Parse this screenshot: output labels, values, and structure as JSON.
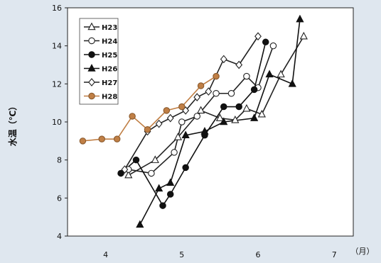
{
  "chart_data": {
    "type": "line",
    "ylabel": "水温（℃）",
    "x_unit_label": "（月）",
    "ylim": [
      4,
      16
    ],
    "xlim": [
      3.5,
      7.25
    ],
    "x_ticks": [
      4,
      5,
      6,
      7
    ],
    "y_ticks": [
      4,
      6,
      8,
      10,
      12,
      14,
      16
    ],
    "grid": false,
    "legend_position": "top-left",
    "series": [
      {
        "name": "H23",
        "marker": "triangle-open",
        "color": "#222222",
        "x": [
          4.3,
          4.65,
          4.95,
          5.25,
          5.5,
          5.7,
          5.85,
          6.05,
          6.3,
          6.6
        ],
        "y": [
          7.2,
          8.0,
          9.2,
          10.6,
          10.2,
          10.1,
          10.7,
          10.4,
          12.5,
          14.5
        ]
      },
      {
        "name": "H24",
        "marker": "circle-open",
        "color": "#222222",
        "x": [
          4.3,
          4.6,
          4.9,
          5.0,
          5.2,
          5.45,
          5.65,
          5.85,
          6.0,
          6.2
        ],
        "y": [
          7.5,
          7.3,
          8.4,
          10.0,
          10.3,
          11.5,
          11.5,
          12.4,
          11.8,
          14.0
        ]
      },
      {
        "name": "H25",
        "marker": "circle-filled",
        "color": "#111111",
        "x": [
          4.2,
          4.4,
          4.75,
          4.85,
          5.05,
          5.3,
          5.55,
          5.75,
          5.95,
          6.1
        ],
        "y": [
          7.3,
          8.0,
          5.6,
          6.2,
          7.6,
          9.3,
          10.8,
          10.8,
          11.7,
          14.2
        ]
      },
      {
        "name": "H26",
        "marker": "triangle-filled",
        "color": "#111111",
        "x": [
          4.45,
          4.7,
          4.85,
          5.05,
          5.3,
          5.55,
          5.95,
          6.15,
          6.45,
          6.55
        ],
        "y": [
          4.6,
          6.5,
          6.8,
          9.3,
          9.5,
          10.0,
          10.2,
          12.5,
          12.0,
          15.4
        ]
      },
      {
        "name": "H27",
        "marker": "diamond-open",
        "color": "#222222",
        "x": [
          4.25,
          4.55,
          4.7,
          4.85,
          5.05,
          5.2,
          5.35,
          5.55,
          5.75,
          6.0
        ],
        "y": [
          7.5,
          9.5,
          9.9,
          10.2,
          10.6,
          11.3,
          11.6,
          13.3,
          13.0,
          14.5
        ]
      },
      {
        "name": "H28",
        "marker": "circle-brown",
        "color": "#c07f45",
        "x": [
          3.7,
          3.95,
          4.15,
          4.35,
          4.55,
          4.8,
          5.0,
          5.25,
          5.45
        ],
        "y": [
          9.0,
          9.1,
          9.1,
          10.3,
          9.6,
          10.6,
          10.8,
          11.9,
          12.4
        ]
      }
    ]
  }
}
